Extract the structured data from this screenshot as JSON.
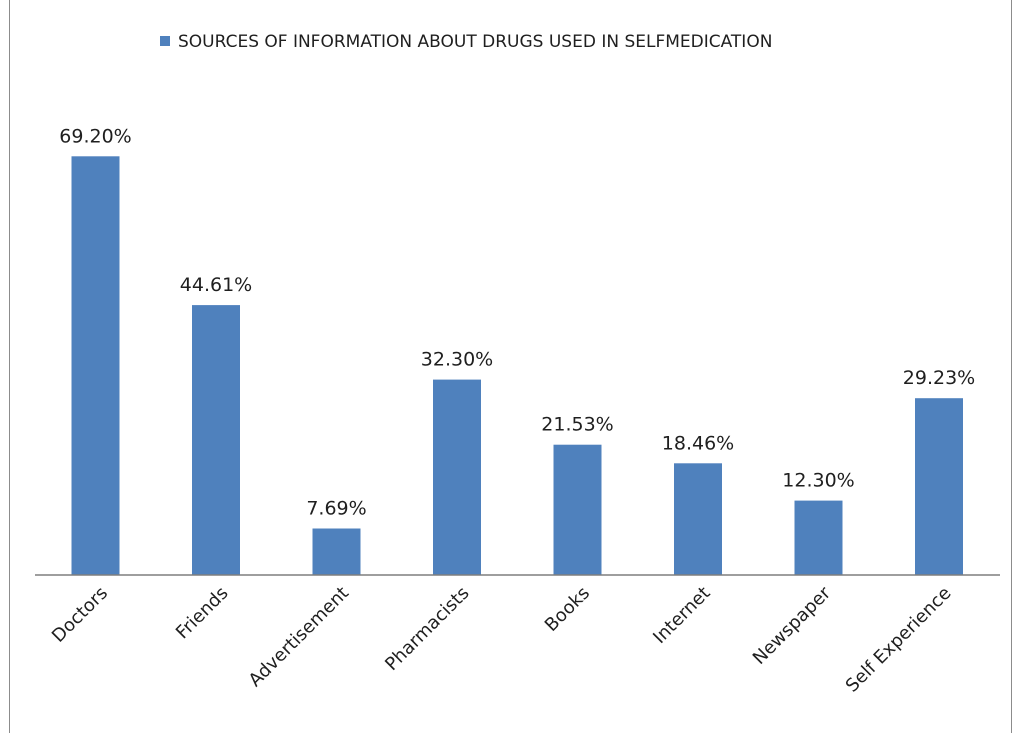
{
  "chart_data": {
    "type": "bar",
    "title": "",
    "xlabel": "",
    "ylabel": "",
    "ylim": [
      0,
      0.75
    ],
    "grid": false,
    "legend_position": "top",
    "categories": [
      "Doctors",
      "Friends",
      "Advertisement",
      "Pharmacists",
      "Books",
      "Internet",
      "Newspaper",
      "Self Experience"
    ],
    "series": [
      {
        "name": "SOURCES OF INFORMATION ABOUT DRUGS USED IN SELFMEDICATION",
        "values": [
          0.692,
          0.4461,
          0.0769,
          0.323,
          0.2153,
          0.1846,
          0.123,
          0.2923
        ],
        "labels": [
          "69.20%",
          "44.61%",
          "7.69%",
          "32.30%",
          "21.53%",
          "18.46%",
          "12.30%",
          "29.23%"
        ],
        "color": "#4f81bd"
      }
    ]
  }
}
